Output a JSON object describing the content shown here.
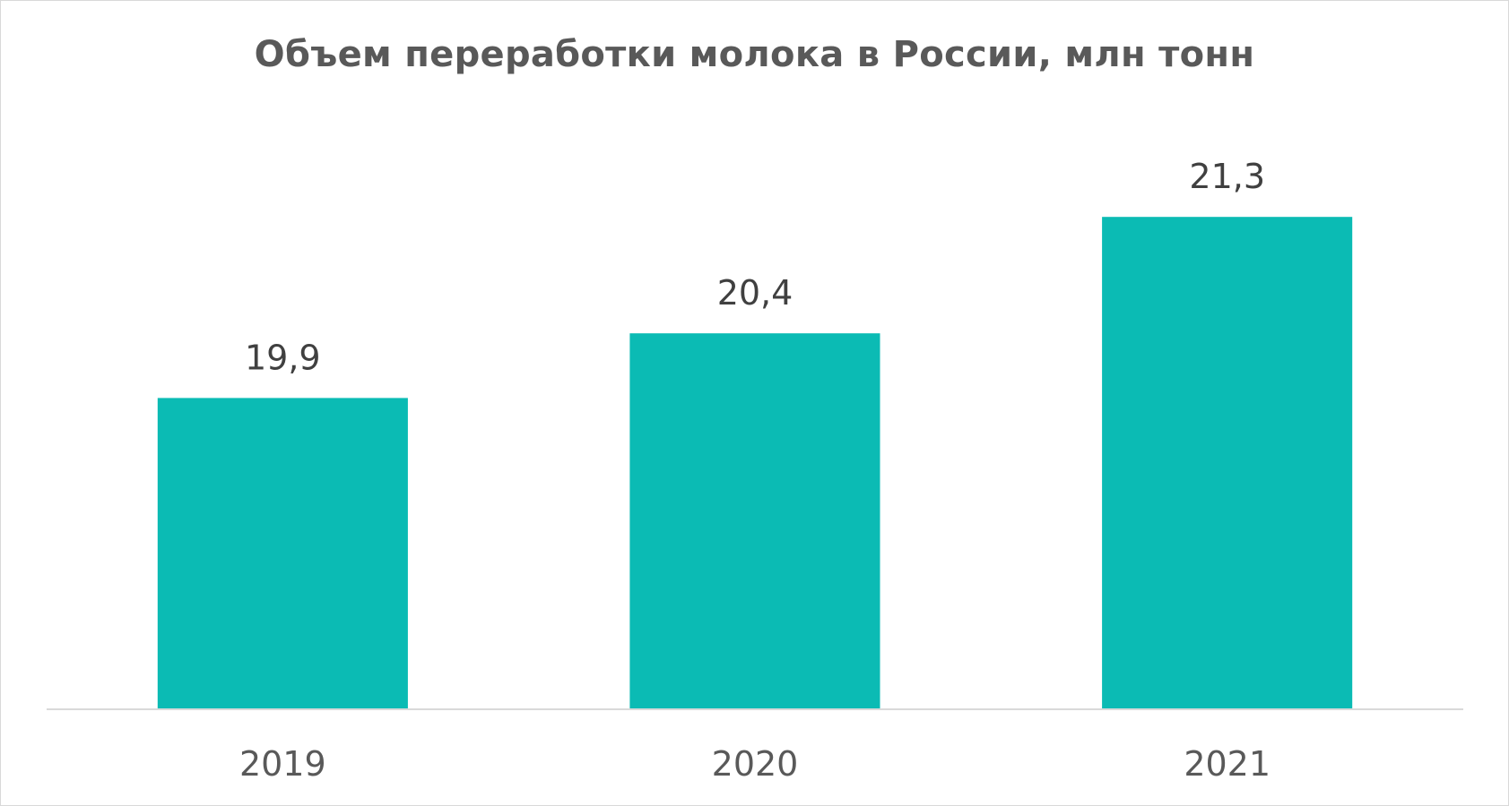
{
  "chart_data": {
    "type": "bar",
    "title": "Объем переработки молока в России, млн тонн",
    "categories": [
      "2019",
      "2020",
      "2021"
    ],
    "values": [
      19.9,
      20.4,
      21.3
    ],
    "value_labels": [
      "19,9",
      "20,4",
      "21,3"
    ],
    "xlabel": "",
    "ylabel": "",
    "ylim": [
      17.5,
      21.8
    ],
    "grid": false,
    "legend": "none",
    "bar_color": "#0BBBB4",
    "axis_color": "#D9D9D9"
  }
}
